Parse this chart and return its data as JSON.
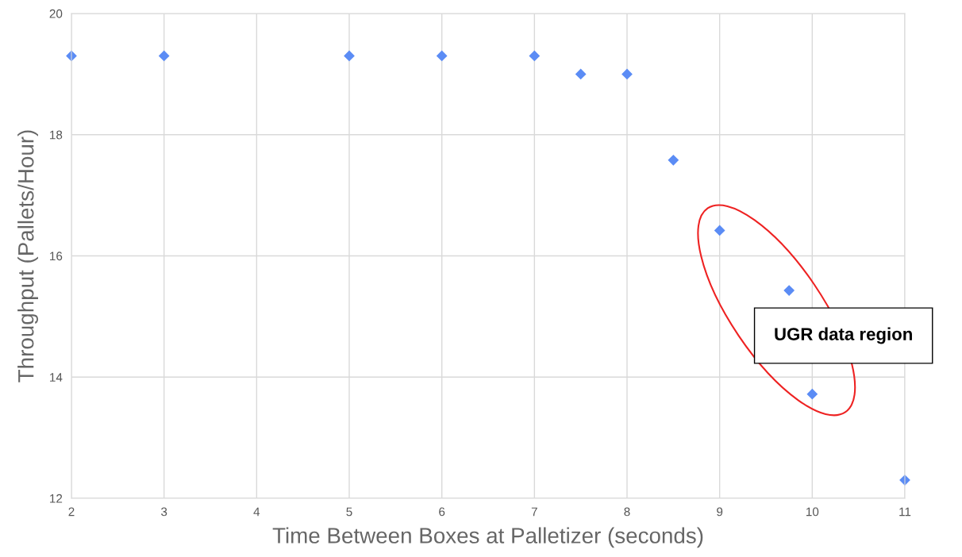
{
  "chart_data": {
    "type": "scatter",
    "xlabel": "Time Between Boxes at Palletizer (seconds)",
    "ylabel": "Throughput (Pallets/Hour)",
    "x": [
      2,
      3,
      5,
      6,
      7,
      7.5,
      8,
      8.5,
      9,
      9.75,
      10,
      11
    ],
    "series": [
      {
        "color": "#5b8cf5",
        "values": [
          19.3,
          19.3,
          19.3,
          19.3,
          19.3,
          19.0,
          19.0,
          17.58,
          16.42,
          15.43,
          13.72,
          12.3
        ]
      }
    ],
    "xlim": [
      2,
      11
    ],
    "ylim": [
      12,
      20
    ],
    "xticks": [
      2,
      3,
      4,
      5,
      6,
      7,
      8,
      9,
      10,
      11
    ],
    "yticks": [
      12,
      14,
      16,
      18,
      20
    ],
    "grid": true,
    "marker": "diamond",
    "annotations": [
      "UGR data region"
    ]
  }
}
